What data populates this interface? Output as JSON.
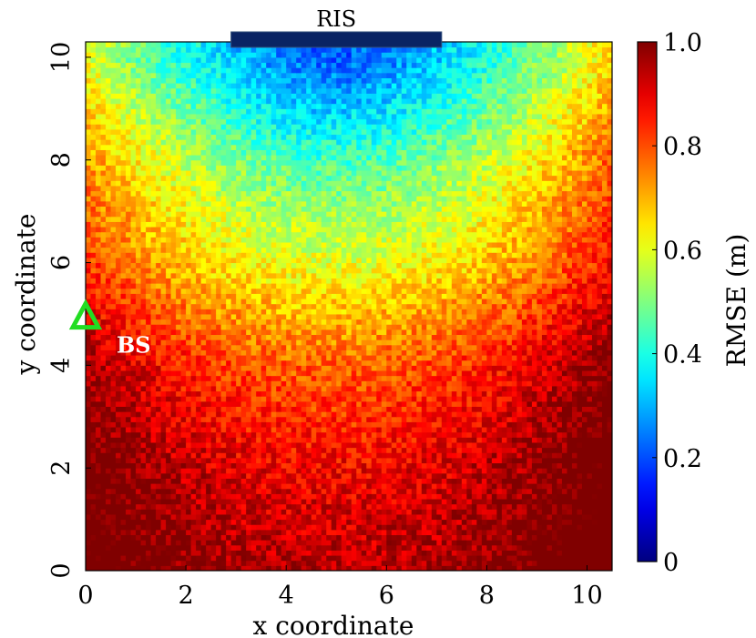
{
  "chart_data": {
    "type": "heatmap",
    "xlabel": "x coordinate",
    "ylabel": "y coordinate",
    "xlim": [
      0,
      10.5
    ],
    "ylim": [
      0,
      10.3
    ],
    "xticks": [
      "0",
      "2",
      "4",
      "6",
      "8",
      "10"
    ],
    "yticks": [
      "0",
      "2",
      "4",
      "6",
      "8",
      "10"
    ],
    "colorbar": {
      "label": "RMSE (m)",
      "range": [
        0,
        1.0
      ],
      "ticks": [
        "0",
        "0.2",
        "0.4",
        "0.6",
        "0.8",
        "1.0"
      ],
      "colormap": "jet"
    },
    "grid": {
      "nx": 105,
      "ny": 103
    },
    "field": {
      "min_point": {
        "x": 5.0,
        "y": 10.0,
        "value": 0.22
      },
      "value_at_y": [
        {
          "y": 10,
          "value": 0.3
        },
        {
          "y": 8,
          "value": 0.47
        },
        {
          "y": 6,
          "value": 0.6
        },
        {
          "y": 4,
          "value": 0.78
        },
        {
          "y": 2,
          "value": 0.88
        },
        {
          "y": 0,
          "value": 0.95
        }
      ],
      "noise": 0.07
    },
    "annotations": {
      "ris": {
        "label": "RIS",
        "x_start": 2.9,
        "x_end": 7.1,
        "color": "#0a2463"
      },
      "bs": {
        "label": "BS",
        "x": 0,
        "y": 4.9,
        "marker": "triangle",
        "color": "#22dd22"
      }
    }
  }
}
